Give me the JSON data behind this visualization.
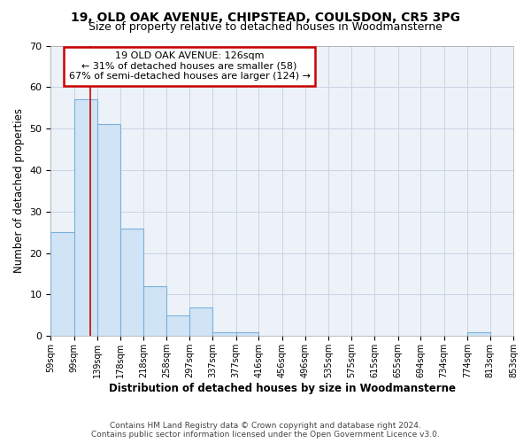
{
  "title_line1": "19, OLD OAK AVENUE, CHIPSTEAD, COULSDON, CR5 3PG",
  "title_line2": "Size of property relative to detached houses in Woodmansterne",
  "xlabel": "Distribution of detached houses by size in Woodmansterne",
  "ylabel": "Number of detached properties",
  "bin_edges": [
    59,
    99,
    139,
    178,
    218,
    258,
    297,
    337,
    377,
    416,
    456,
    496,
    535,
    575,
    615,
    655,
    694,
    734,
    774,
    813,
    853
  ],
  "bar_heights": [
    25,
    57,
    51,
    26,
    12,
    5,
    7,
    1,
    1,
    0,
    0,
    0,
    0,
    0,
    0,
    0,
    0,
    0,
    1,
    0
  ],
  "bar_facecolor": "#d0e4f5",
  "bar_edgecolor": "#7ab0d8",
  "grid_color": "#c8d4e4",
  "background_color": "#edf2f9",
  "property_line_x": 126,
  "property_line_color": "#cc0000",
  "annotation_text": "19 OLD OAK AVENUE: 126sqm\n← 31% of detached houses are smaller (58)\n67% of semi-detached houses are larger (124) →",
  "annotation_box_color": "#cc0000",
  "ylim": [
    0,
    70
  ],
  "yticks": [
    0,
    10,
    20,
    30,
    40,
    50,
    60,
    70
  ],
  "tick_labels": [
    "59sqm",
    "99sqm",
    "139sqm",
    "178sqm",
    "218sqm",
    "258sqm",
    "297sqm",
    "337sqm",
    "377sqm",
    "416sqm",
    "456sqm",
    "496sqm",
    "535sqm",
    "575sqm",
    "615sqm",
    "655sqm",
    "694sqm",
    "734sqm",
    "774sqm",
    "813sqm",
    "853sqm"
  ],
  "footer_line1": "Contains HM Land Registry data © Crown copyright and database right 2024.",
  "footer_line2": "Contains public sector information licensed under the Open Government Licence v3.0."
}
